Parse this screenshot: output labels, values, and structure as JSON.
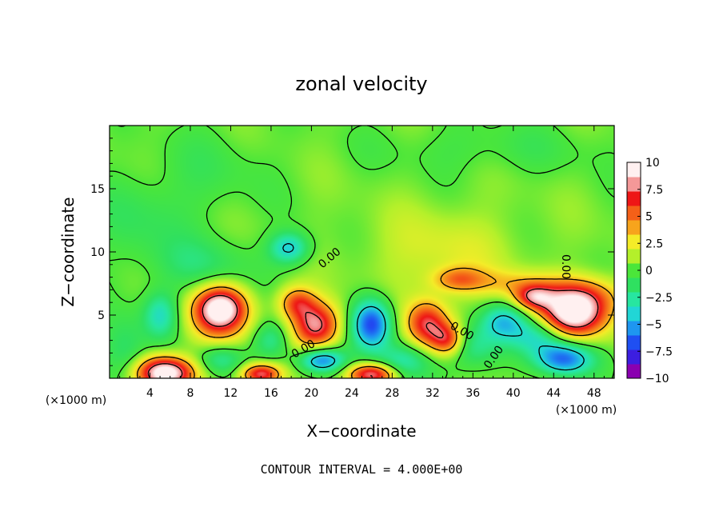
{
  "chart_data": {
    "type": "heatmap",
    "title": "zonal velocity",
    "xlabel": "X−coordinate",
    "ylabel": "Z−coordinate",
    "x_unit_label": "(×1000 m)",
    "x_unit_label_right": "(×1000 m)",
    "xlim": [
      0,
      50
    ],
    "ylim": [
      0,
      20
    ],
    "x_ticks": [
      "4",
      "8",
      "12",
      "16",
      "20",
      "24",
      "28",
      "32",
      "36",
      "40",
      "44",
      "48"
    ],
    "x_tick_values": [
      4,
      8,
      12,
      16,
      20,
      24,
      28,
      32,
      36,
      40,
      44,
      48
    ],
    "y_ticks": [
      "5",
      "10",
      "15"
    ],
    "y_tick_values": [
      5,
      10,
      15
    ],
    "colorbar_ticks": [
      "10",
      "7.5",
      "5",
      "2.5",
      "0",
      "−2.5",
      "−5",
      "−7.5",
      "−10"
    ],
    "colorbar_values": [
      10,
      7.5,
      5,
      2.5,
      0,
      -2.5,
      -5,
      -7.5,
      -10
    ],
    "colorbar_range": [
      -10,
      10
    ],
    "colors": [
      "#8a00b0",
      "#3c1ee0",
      "#1f4ff2",
      "#1e96f0",
      "#21d6d6",
      "#27e6a0",
      "#2fe060",
      "#4be63a",
      "#b4f02a",
      "#f4ec28",
      "#f7a41c",
      "#f46018",
      "#ee1616",
      "#f49898",
      "#fff0f0"
    ],
    "contour_label": "0.00",
    "footnote": "CONTOUR INTERVAL = 4.000E+00",
    "background_level": 0.5,
    "anomalies": [
      {
        "x": 5.5,
        "z": 0.4,
        "value": 11,
        "sx": 2.0,
        "sz": 0.9
      },
      {
        "x": 11,
        "z": 5.6,
        "value": 9,
        "sx": 1.8,
        "sz": 1.2
      },
      {
        "x": 10.5,
        "z": 4.2,
        "value": 3,
        "sx": 2.2,
        "sz": 1.6
      },
      {
        "x": 15,
        "z": 0.3,
        "value": 8,
        "sx": 1.4,
        "sz": 0.6
      },
      {
        "x": 18.5,
        "z": 6.0,
        "value": 5,
        "sx": 1.3,
        "sz": 0.9
      },
      {
        "x": 20.5,
        "z": 4.2,
        "value": 8,
        "sx": 1.7,
        "sz": 1.3
      },
      {
        "x": 26,
        "z": 0.3,
        "value": 8,
        "sx": 1.7,
        "sz": 0.6
      },
      {
        "x": 31.5,
        "z": 4.3,
        "value": 7,
        "sx": 1.5,
        "sz": 1.3
      },
      {
        "x": 33.5,
        "z": 3.0,
        "value": 6,
        "sx": 1.2,
        "sz": 0.9
      },
      {
        "x": 34.5,
        "z": 7.8,
        "value": 4,
        "sx": 1.8,
        "sz": 0.7
      },
      {
        "x": 40,
        "z": 7.5,
        "value": 2.5,
        "sx": 3.0,
        "sz": 0.8
      },
      {
        "x": 42,
        "z": 6.4,
        "value": 6,
        "sx": 1.4,
        "sz": 0.7
      },
      {
        "x": 46,
        "z": 5.0,
        "value": 10,
        "sx": 2.3,
        "sz": 1.3
      },
      {
        "x": 47,
        "z": 6.6,
        "value": 4,
        "sx": 3.0,
        "sz": 1.1
      },
      {
        "x": 26,
        "z": 4.3,
        "value": -8,
        "sx": 1.4,
        "sz": 1.4
      },
      {
        "x": 21,
        "z": 1.4,
        "value": -7,
        "sx": 1.6,
        "sz": 0.7
      },
      {
        "x": 45,
        "z": 1.5,
        "value": -7,
        "sx": 2.0,
        "sz": 0.9
      },
      {
        "x": 17.8,
        "z": 10.3,
        "value": -5,
        "sx": 1.4,
        "sz": 0.9
      },
      {
        "x": 5,
        "z": 5.0,
        "value": -4,
        "sx": 1.2,
        "sz": 1.3
      },
      {
        "x": 39,
        "z": 4.5,
        "value": -4.5,
        "sx": 1.6,
        "sz": 1.0
      },
      {
        "x": 36,
        "z": 2.5,
        "value": -3.5,
        "sx": 2.0,
        "sz": 1.2
      },
      {
        "x": 42.5,
        "z": 3.3,
        "value": -4,
        "sx": 2.0,
        "sz": 1.0
      },
      {
        "x": 11,
        "z": 1.5,
        "value": -3.5,
        "sx": 1.6,
        "sz": 0.9
      },
      {
        "x": 16,
        "z": 3.0,
        "value": -3,
        "sx": 1.3,
        "sz": 1.0
      },
      {
        "x": 29,
        "z": 1.3,
        "value": -3.5,
        "sx": 1.8,
        "sz": 1.0
      },
      {
        "x": 1.5,
        "z": 2.0,
        "value": -2.5,
        "sx": 1.6,
        "sz": 2.0
      },
      {
        "x": 9,
        "z": 9.0,
        "value": -2,
        "sx": 3.5,
        "sz": 1.5
      },
      {
        "x": 3,
        "z": 12.5,
        "value": -1.5,
        "sx": 3.5,
        "sz": 2.5
      },
      {
        "x": 10,
        "z": 16.5,
        "value": -1,
        "sx": 4.0,
        "sz": 2.5
      },
      {
        "x": 38,
        "z": 18.2,
        "value": -1,
        "sx": 8.0,
        "sz": 1.5
      },
      {
        "x": 33,
        "z": 10.0,
        "value": 1.8,
        "sx": 5.0,
        "sz": 2.5
      }
    ]
  }
}
